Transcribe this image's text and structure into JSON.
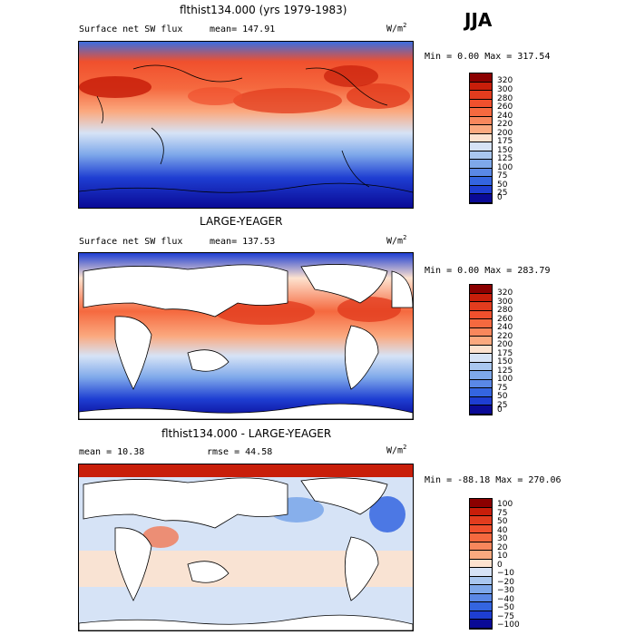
{
  "season": "JJA",
  "panels": [
    {
      "title": "flthist134.000 (yrs 1979-1983)",
      "left_label": "Surface net SW flux",
      "mean_label": "mean= 147.91",
      "units": "W/m",
      "units_sup": "2",
      "minmax": "Min =    0.00 Max = 317.54",
      "levels": [
        "320",
        "300",
        "280",
        "260",
        "240",
        "220",
        "200",
        "175",
        "150",
        "125",
        "100",
        "75",
        "50",
        "25",
        "0"
      ]
    },
    {
      "title": "LARGE-YEAGER",
      "left_label": "Surface net SW flux",
      "mean_label": "mean= 137.53",
      "units": "W/m",
      "units_sup": "2",
      "minmax": "Min =    0.00 Max = 283.79",
      "levels": [
        "320",
        "300",
        "280",
        "260",
        "240",
        "220",
        "200",
        "175",
        "150",
        "125",
        "100",
        "75",
        "50",
        "25",
        "0"
      ]
    },
    {
      "title": "flthist134.000 - LARGE-YEAGER",
      "left_label": "mean =   10.38",
      "mean_label": "rmse =   44.58",
      "units": "W/m",
      "units_sup": "2",
      "minmax": "Min = -88.18 Max = 270.06",
      "levels": [
        "100",
        "75",
        "50",
        "40",
        "30",
        "20",
        "10",
        "0",
        "−10",
        "−20",
        "−30",
        "−40",
        "−50",
        "−75",
        "−100"
      ]
    }
  ],
  "colors": {
    "abs_scale": [
      "#8b0000",
      "#c81e0a",
      "#e23c1e",
      "#f0502d",
      "#f5693f",
      "#f8875c",
      "#fba97f",
      "#fde2cf",
      "#d6e3f6",
      "#a9c7ef",
      "#7ea8ea",
      "#5a88e6",
      "#3465e0",
      "#1e3ed2",
      "#0a0a96"
    ],
    "diff_scale": [
      "#8b0000",
      "#c81e0a",
      "#e23c1e",
      "#f0502d",
      "#f5693f",
      "#f8875c",
      "#fba97f",
      "#fde2cf",
      "#d6e3f6",
      "#a9c7ef",
      "#7ea8ea",
      "#5a88e6",
      "#3465e0",
      "#1e3ed2",
      "#0a0a96"
    ]
  }
}
